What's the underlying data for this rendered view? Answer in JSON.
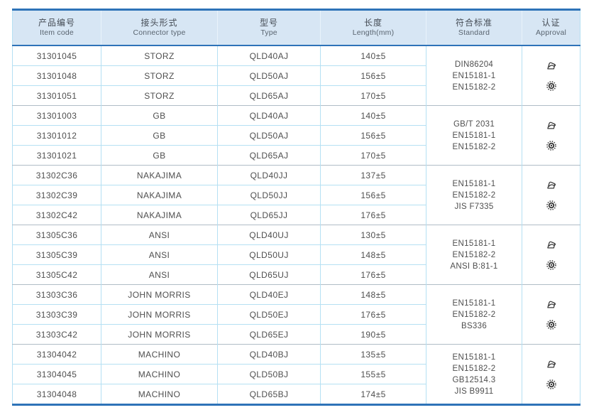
{
  "colors": {
    "accent": "#2e73b8",
    "header_bg": "#d7e6f4",
    "row_line": "#b5e0f3",
    "group_line": "#b0bdc6",
    "text": "#4f4f4f",
    "icon": "#3b3b3b"
  },
  "header": {
    "columns": [
      {
        "zh": "产品编号",
        "en": "Item code",
        "name": "item-code"
      },
      {
        "zh": "接头形式",
        "en": "Connector type",
        "name": "connector-type"
      },
      {
        "zh": "型号",
        "en": "Type",
        "name": "type"
      },
      {
        "zh": "长度",
        "en": "Length(mm)",
        "name": "length"
      },
      {
        "zh": "符合标准",
        "en": "Standard",
        "name": "standard"
      },
      {
        "zh": "认证",
        "en": "Approval",
        "name": "approval"
      }
    ]
  },
  "groups": [
    {
      "rows": [
        {
          "code": "31301045",
          "connector": "STORZ",
          "type": "QLD40AJ",
          "length": "140±5"
        },
        {
          "code": "31301048",
          "connector": "STORZ",
          "type": "QLD50AJ",
          "length": "156±5"
        },
        {
          "code": "31301051",
          "connector": "STORZ",
          "type": "QLD65AJ",
          "length": "170±5"
        }
      ],
      "standards": [
        "DIN86204",
        "EN15181-1",
        "EN15182-2"
      ],
      "approval_icons": [
        "certificate-icon",
        "seal-icon"
      ]
    },
    {
      "rows": [
        {
          "code": "31301003",
          "connector": "GB",
          "type": "QLD40AJ",
          "length": "140±5"
        },
        {
          "code": "31301012",
          "connector": "GB",
          "type": "QLD50AJ",
          "length": "156±5"
        },
        {
          "code": "31301021",
          "connector": "GB",
          "type": "QLD65AJ",
          "length": "170±5"
        }
      ],
      "standards": [
        "GB/T 2031",
        "EN15181-1",
        "EN15182-2"
      ],
      "approval_icons": [
        "certificate-icon",
        "seal-icon"
      ]
    },
    {
      "rows": [
        {
          "code": "31302C36",
          "connector": "NAKAJIMA",
          "type": "QLD40JJ",
          "length": "137±5"
        },
        {
          "code": "31302C39",
          "connector": "NAKAJIMA",
          "type": "QLD50JJ",
          "length": "156±5"
        },
        {
          "code": "31302C42",
          "connector": "NAKAJIMA",
          "type": "QLD65JJ",
          "length": "176±5"
        }
      ],
      "standards": [
        "EN15181-1",
        "EN15182-2",
        "JIS F7335"
      ],
      "approval_icons": [
        "certificate-icon",
        "seal-icon"
      ]
    },
    {
      "rows": [
        {
          "code": "31305C36",
          "connector": "ANSI",
          "type": "QLD40UJ",
          "length": "130±5"
        },
        {
          "code": "31305C39",
          "connector": "ANSI",
          "type": "QLD50UJ",
          "length": "148±5"
        },
        {
          "code": "31305C42",
          "connector": "ANSI",
          "type": "QLD65UJ",
          "length": "176±5"
        }
      ],
      "standards": [
        "EN15181-1",
        "EN15182-2",
        "ANSI B:81-1"
      ],
      "approval_icons": [
        "certificate-icon",
        "seal-icon"
      ]
    },
    {
      "rows": [
        {
          "code": "31303C36",
          "connector": "JOHN MORRIS",
          "type": "QLD40EJ",
          "length": "148±5"
        },
        {
          "code": "31303C39",
          "connector": "JOHN MORRIS",
          "type": "QLD50EJ",
          "length": "176±5"
        },
        {
          "code": "31303C42",
          "connector": "JOHN MORRIS",
          "type": "QLD65EJ",
          "length": "190±5"
        }
      ],
      "standards": [
        "EN15181-1",
        "EN15182-2",
        "BS336"
      ],
      "approval_icons": [
        "certificate-icon",
        "seal-icon"
      ]
    },
    {
      "rows": [
        {
          "code": "31304042",
          "connector": "MACHINO",
          "type": "QLD40BJ",
          "length": "135±5"
        },
        {
          "code": "31304045",
          "connector": "MACHINO",
          "type": "QLD50BJ",
          "length": "155±5"
        },
        {
          "code": "31304048",
          "connector": "MACHINO",
          "type": "QLD65BJ",
          "length": "174±5"
        }
      ],
      "standards": [
        "EN15181-1",
        "EN15182-2",
        "GB12514.3",
        "JIS B9911"
      ],
      "approval_icons": [
        "certificate-icon",
        "seal-icon"
      ]
    }
  ]
}
